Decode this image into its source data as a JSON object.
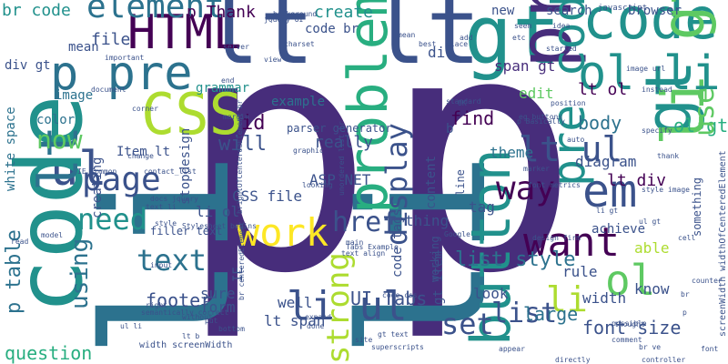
{
  "palette": {
    "c1": "#440154",
    "c2": "#472d7b",
    "c3": "#3b528b",
    "c4": "#2c728e",
    "c5": "#21918c",
    "c6": "#28ae80",
    "c7": "#5ec962",
    "c8": "#addc30",
    "c9": "#fde725"
  },
  "words": {
    "p_big": "p",
    "li_big": "li",
    "lt": "lt",
    "code_a": "code",
    "gt": "gt",
    "css": "CSS",
    "html": "HTML",
    "pre": "pre",
    "p_pre": "p pre",
    "ul": "ul",
    "li_gt": "li gt",
    "ol_li": "ol li",
    "element": "element",
    "p_thank": "p Thank",
    "br_code": "br code",
    "code_v": "code",
    "problem": "problem",
    "work": "work",
    "button": "button",
    "want": "want",
    "em": "em",
    "way": "way",
    "page": "page",
    "text": "text",
    "need": "need",
    "li_ul": "li ul",
    "strong": "strong",
    "display": "display",
    "pre_code": "pre code",
    "href": "href",
    "set": "set",
    "li_li": "li",
    "ol": "ol",
    "lt_ol": "lt ol",
    "lt_ul": "lt ul",
    "list": "list",
    "list_style": "list style",
    "ui_tabs": "UI Tabs",
    "footer": "footer",
    "using": "using",
    "question": "question",
    "p_table": "p table",
    "now": "now",
    "file": "file",
    "mean": "mean",
    "image": "image",
    "color": "color",
    "grammar": "grammar",
    "create": "create",
    "example": "example",
    "id": "id",
    "will": "will",
    "really": "really",
    "asp_net": "ASP NET",
    "css_file": "CSS file",
    "thing": "thing",
    "tag": "tag",
    "theme": "theme",
    "body": "body",
    "find": "find",
    "edit": "edit",
    "diagram": "diagram",
    "lt_div": "lt div",
    "ol_gt": "ol gt",
    "use": "use",
    "span_gt": "span gt",
    "div": "div",
    "div_gt": "div gt",
    "white_space": "white space",
    "li_ol": "li ol",
    "sure": "sure",
    "form": "form",
    "well": "well",
    "lt_span": "lt span",
    "rule": "rule",
    "look": "look",
    "large": "large",
    "width": "width",
    "font_size": "font size",
    "know": "know",
    "able": "able",
    "content": "content",
    "achieve": "achieve",
    "stopdesign": "stopdesign",
    "filler_text": "filler text",
    "creating": "creating",
    "code_tags": "code tags",
    "gt_item": "gt Item",
    "item_lt": "Item lt",
    "new": "new",
    "search": "search",
    "browser": "browser",
    "javascript": "javascript",
    "code_br": "code br",
    "parser_generator": "parser generator",
    "ie": "IE",
    "working": "working",
    "something": "something",
    "width_screenwidth": "width screenWidth",
    "screenwidth_long": "screenWidth widthOfCenteredElement",
    "b": "b",
    "line": "line",
    "unordered_list": "unordered list br",
    "stylesheet": "Stylesheet begins",
    "style": "style",
    "margin": "margin",
    "jquery": "jQuery UI",
    "background": "background",
    "charset": "charset",
    "server": "server",
    "view": "view",
    "standard": "standard",
    "marker": "marker",
    "google": "Google",
    "font_metrics": "font metrics",
    "cell": "cell",
    "instead": "instead",
    "graphic": "graphic",
    "contact_list": "contact_list",
    "tabs_example": "Tabs Example",
    "style_image": "style image",
    "add": "add",
    "place": "place",
    "idea": "idea",
    "seem": "seem",
    "auto": "auto",
    "position": "position",
    "p_basically": "p Basically",
    "specify": "specify",
    "image_url": "image url",
    "counter": "counter",
    "ul_gt_small": "ul gt",
    "li_gt_small": "li gt",
    "text_align": "text align",
    "superscripts": "superscripts",
    "site": "site",
    "gt_text": "gt text",
    "appear": "appear",
    "directly": "directly",
    "thought": "thought",
    "comment": "comment",
    "controller": "controller",
    "br_ve": "br ve",
    "possible": "possible",
    "done": "done",
    "put": "put",
    "bottom": "bottom",
    "right": "right",
    "without": "without",
    "expand": "expand",
    "docs_jquery": "docs jquery",
    "semantically_correct": "semantically correct",
    "ie_common": "IE Common",
    "model": "model",
    "read": "read",
    "design_firm": "design firm",
    "important": "important",
    "etc": "etc",
    "ok": "OK",
    "eg_buttons": "eg buttons",
    "best": "best",
    "mean_small": "mean",
    "end": "end",
    "change": "change",
    "document": "document",
    "corner": "corner",
    "br_centered": "br centeredElement",
    "bright_centered": "brightOfCenteredElement br",
    "started": "started",
    "font": "font",
    "thank": "thank",
    "looking": "looking",
    "text_li": "text li",
    "input": "input",
    "main": "main",
    "code_css": "code css",
    "ul_li_small": "ul li",
    "lt_b": "lt b",
    "p_small": "p",
    "br_small": "br"
  }
}
